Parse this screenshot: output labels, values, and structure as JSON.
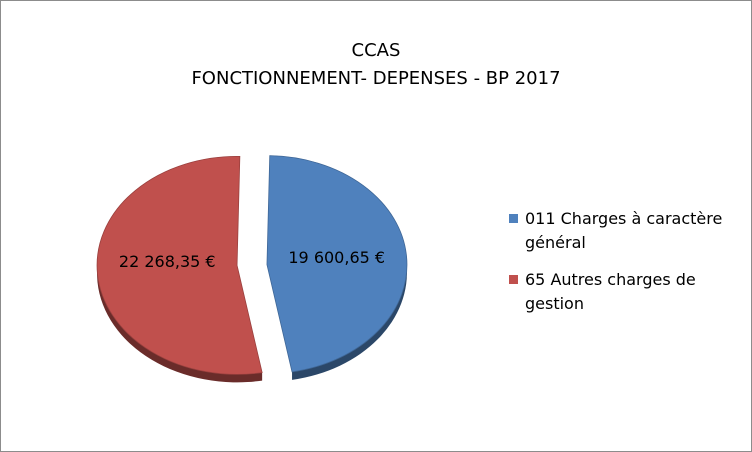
{
  "chart_data": {
    "type": "pie",
    "title": [
      "CCAS",
      "FONCTIONNEMENT- DEPENSES - BP 2017"
    ],
    "categories": [
      "011 Charges à caractère général",
      "65 Autres charges de gestion"
    ],
    "values": [
      19600.65,
      22268.35
    ],
    "data_labels": [
      "19 600,65 €",
      "22 268,35 €"
    ],
    "colors": [
      "#4f81bd",
      "#c0504d"
    ],
    "exploded": true,
    "legend_position": "right",
    "style": "3d"
  }
}
